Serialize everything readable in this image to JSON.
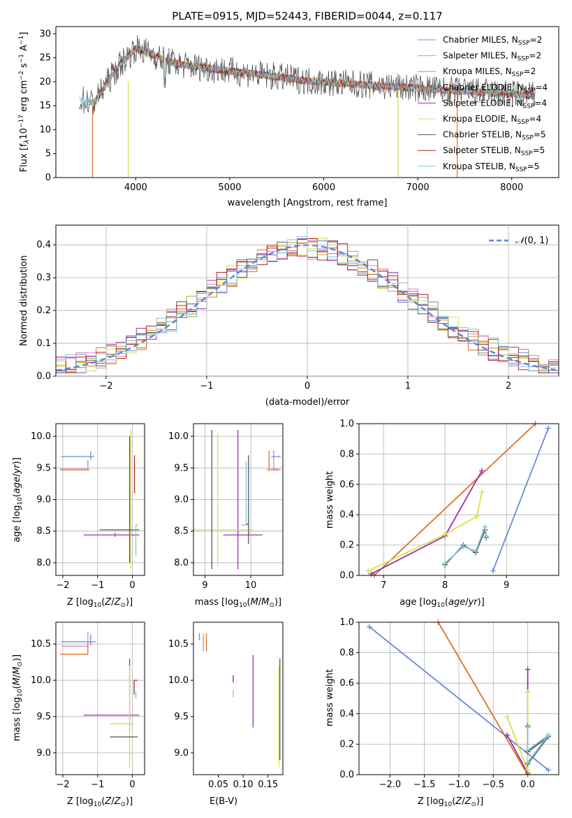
{
  "chart_data": [
    {
      "id": "spectrum",
      "type": "line",
      "title": "PLATE=0915, MJD=52443, FIBERID=0044, z=0.117",
      "xlabel": "wavelength [Angstrom, rest frame]",
      "ylabel": "Flux [f_λ 10^-17 erg cm^-2 s^-1 A^-1]",
      "xlim": [
        3150,
        8500
      ],
      "ylim": [
        0,
        31.5
      ],
      "xticks": [
        4000,
        5000,
        6000,
        7000,
        8000
      ],
      "yticks": [
        0,
        5,
        10,
        15,
        20,
        25,
        30
      ],
      "grid": false,
      "legend_position": "top-right",
      "series": [
        {
          "name": "Chabrier MILES, N_SSP=2",
          "color": "#6a8bd8"
        },
        {
          "name": "Salpeter MILES, N_SSP=2",
          "color": "#e07fc0"
        },
        {
          "name": "Kroupa MILES, N_SSP=2",
          "color": "#c8a126"
        },
        {
          "name": "Chabrier ELODIE, N_SSP=4",
          "color": "#e07024"
        },
        {
          "name": "Salpeter ELODIE, N_SSP=4",
          "color": "#9b2fae"
        },
        {
          "name": "Kroupa ELODIE, N_SSP=4",
          "color": "#d8e04a"
        },
        {
          "name": "Chabrier STELIB, N_SSP=5",
          "color": "#555555"
        },
        {
          "name": "Salpeter STELIB, N_SSP=5",
          "color": "#b22222"
        },
        {
          "name": "Kroupa STELIB, N_SSP=5",
          "color": "#7fc8d8"
        }
      ],
      "data_observed": {
        "x": [
          3400,
          3550,
          3700,
          3850,
          4000,
          4150,
          4300,
          4500,
          4700,
          4900,
          5100,
          5300,
          5500,
          5700,
          5900,
          6100,
          6300,
          6500,
          6700,
          6900,
          7100,
          7300,
          7500,
          7700,
          7900,
          8100,
          8250
        ],
        "y": [
          16.5,
          15.5,
          20,
          24,
          27,
          26,
          24.5,
          23.5,
          23,
          22.5,
          22,
          21.5,
          21,
          20.5,
          20,
          19.8,
          19.5,
          19.3,
          19,
          18.8,
          18.5,
          18.2,
          18,
          17.8,
          17.5,
          17.3,
          17
        ]
      }
    },
    {
      "id": "residuals",
      "type": "histogram",
      "xlabel": "(data-model)/error",
      "ylabel": "Normed distribution",
      "xlim": [
        -2.5,
        2.5
      ],
      "ylim": [
        0,
        0.46
      ],
      "xticks": [
        -2,
        -1,
        0,
        1,
        2
      ],
      "yticks": [
        0.0,
        0.1,
        0.2,
        0.3,
        0.4
      ],
      "grid": true,
      "legend_position": "top-right",
      "reference_curve": {
        "name": "N(0,1)",
        "mean": 0,
        "sigma": 1,
        "color": "#5b86d6"
      }
    },
    {
      "id": "age-vs-z",
      "type": "error-bars",
      "xlabel": "Z [log10(Z/Z_sun)]",
      "ylabel": "age [log10(age/yr)]",
      "xlim": [
        -2.2,
        0.35
      ],
      "ylim": [
        7.8,
        10.2
      ],
      "xticks": [
        -2,
        -1,
        0
      ],
      "yticks": [
        8.0,
        8.5,
        9.0,
        9.5,
        10.0
      ],
      "grid": true,
      "points": [
        {
          "series": "Chabrier MILES",
          "x": -1.2,
          "y": 9.68,
          "xerr": [
            0.85,
            0.1
          ],
          "yerr": [
            0.05,
            0.08
          ]
        },
        {
          "series": "Chabrier ELODIE",
          "x": -1.28,
          "y": 9.47,
          "xerr": [
            0.8,
            0.05
          ],
          "yerr": [
            0.0,
            0.15
          ]
        },
        {
          "series": "Salpeter MILES",
          "x": -1.28,
          "y": 9.48,
          "xerr": [
            0.8,
            0.02
          ],
          "yerr": [
            0.0,
            0.1
          ]
        },
        {
          "series": "Salpeter ELODIE",
          "x": -0.5,
          "y": 8.44,
          "xerr": [
            0.9,
            0.7
          ],
          "yerr": [
            0.03,
            0.03
          ]
        },
        {
          "series": "Kroupa ELODIE",
          "x": -0.05,
          "y": 9.0,
          "xerr": [
            0.03,
            0.03
          ],
          "yerr": [
            1.1,
            1.1
          ]
        },
        {
          "series": "Chabrier STELIB",
          "x": -0.1,
          "y": 8.52,
          "xerr": [
            0.85,
            0.3
          ],
          "yerr": [
            0.0,
            0.0
          ]
        },
        {
          "series": "Chabrier STELIB",
          "x": -0.08,
          "y": 9.0,
          "xerr": [
            0.0,
            0.0
          ],
          "yerr": [
            1.0,
            1.0
          ]
        },
        {
          "series": "Kroupa STELIB",
          "x": 0.1,
          "y": 8.6,
          "xerr": [
            0.0,
            0.05
          ],
          "yerr": [
            0.5,
            0.0
          ]
        },
        {
          "series": "Salpeter STELIB",
          "x": 0.06,
          "y": 9.4,
          "xerr": [
            0.0,
            0.0
          ],
          "yerr": [
            0.3,
            0.3
          ]
        }
      ]
    },
    {
      "id": "age-vs-mass",
      "type": "error-bars",
      "xlabel": "mass [log10(M/M_sun)]",
      "ylabel": "",
      "xlim": [
        8.75,
        10.7
      ],
      "ylim": [
        7.8,
        10.2
      ],
      "xticks": [
        9,
        10
      ],
      "yticks": [
        8.0,
        8.5,
        9.0,
        9.5,
        10.0
      ],
      "grid": true,
      "points": [
        {
          "series": "Chabrier MILES",
          "x": 10.5,
          "y": 9.68,
          "xerr": [
            0.05,
            0.15
          ],
          "yerr": [
            0.05,
            0.1
          ]
        },
        {
          "series": "Chabrier ELODIE",
          "x": 10.4,
          "y": 9.47,
          "xerr": [
            0.05,
            0.25
          ],
          "yerr": [
            0.0,
            0.3
          ]
        },
        {
          "series": "Salpeter MILES",
          "x": 10.5,
          "y": 9.48,
          "xerr": [
            0.05,
            0.1
          ],
          "yerr": [
            0.0,
            0.3
          ]
        },
        {
          "series": "Salpeter ELODIE",
          "x": 9.85,
          "y": 8.44,
          "xerr": [
            0.45,
            0.4
          ],
          "yerr": [
            0.0,
            0.0
          ]
        },
        {
          "series": "Salpeter ELODIE",
          "x": 9.72,
          "y": 9.0,
          "xerr": [
            0.0,
            0.0
          ],
          "yerr": [
            1.1,
            1.1
          ]
        },
        {
          "series": "Kroupa ELODIE",
          "x": 9.28,
          "y": 9.0,
          "xerr": [
            0.0,
            0.0
          ],
          "yerr": [
            1.05,
            1.05
          ]
        },
        {
          "series": "Kroupa ELODIE",
          "x": 9.15,
          "y": 8.52,
          "xerr": [
            0.45,
            0.9
          ],
          "yerr": [
            0.0,
            0.0
          ]
        },
        {
          "series": "Chabrier STELIB",
          "x": 9.15,
          "y": 9.0,
          "xerr": [
            0.0,
            0.0
          ],
          "yerr": [
            1.1,
            1.1
          ]
        },
        {
          "series": "Kroupa STELIB",
          "x": 9.9,
          "y": 8.6,
          "xerr": [
            0.1,
            0.0
          ],
          "yerr": [
            0.0,
            1.0
          ]
        },
        {
          "series": "Chabrier STELIB",
          "x": 9.95,
          "y": 9.0,
          "xerr": [
            0.0,
            0.0
          ],
          "yerr": [
            0.7,
            0.7
          ]
        },
        {
          "series": "Salpeter STELIB",
          "x": 9.95,
          "y": 8.61,
          "xerr": [
            0.05,
            0.0
          ],
          "yerr": [
            0.0,
            0.0
          ]
        }
      ]
    },
    {
      "id": "mass-weight-vs-age",
      "type": "line",
      "xlabel": "age [log10(age/yr)]",
      "ylabel": "mass weight",
      "xlim": [
        6.6,
        9.85
      ],
      "ylim": [
        0,
        1.0
      ],
      "xticks": [
        7,
        8,
        9
      ],
      "yticks": [
        0.0,
        0.2,
        0.4,
        0.6,
        0.8,
        1.0
      ],
      "grid": true,
      "series": [
        {
          "name": "Chabrier MILES",
          "x": [
            8.78,
            9.68
          ],
          "y": [
            0.03,
            0.97
          ]
        },
        {
          "name": "Chabrier ELODIE",
          "x": [
            6.85,
            9.47
          ],
          "y": [
            0.0,
            1.0
          ]
        },
        {
          "name": "Salpeter ELODIE",
          "x": [
            6.8,
            8.0,
            8.6
          ],
          "y": [
            0.01,
            0.26,
            0.69
          ]
        },
        {
          "name": "Kroupa ELODIE",
          "x": [
            6.75,
            8.0,
            8.52,
            8.6
          ],
          "y": [
            0.03,
            0.27,
            0.39,
            0.55
          ]
        },
        {
          "name": "Chabrier STELIB",
          "x": [
            8.0,
            8.3,
            8.5,
            8.65,
            8.67
          ],
          "y": [
            0.07,
            0.2,
            0.15,
            0.3,
            0.25
          ]
        },
        {
          "name": "Kroupa STELIB",
          "x": [
            8.0,
            8.3,
            8.5,
            8.65,
            8.67
          ],
          "y": [
            0.08,
            0.19,
            0.16,
            0.32,
            0.26
          ]
        }
      ]
    },
    {
      "id": "mass-vs-z",
      "type": "error-bars",
      "xlabel": "Z [log10(Z/Z_sun)]",
      "ylabel": "mass [log10(M/M_sun)]",
      "xlim": [
        -2.2,
        0.35
      ],
      "ylim": [
        8.7,
        10.8
      ],
      "xticks": [
        -2,
        -1,
        0
      ],
      "yticks": [
        9.0,
        9.5,
        10.0,
        10.5
      ],
      "grid": true,
      "points": [
        {
          "series": "Chabrier MILES",
          "x": -1.2,
          "y": 10.53,
          "xerr": [
            0.85,
            0.15
          ],
          "yerr": [
            0.05,
            0.1
          ]
        },
        {
          "series": "Salpeter MILES",
          "x": -1.28,
          "y": 10.47,
          "xerr": [
            0.75,
            0.0
          ],
          "yerr": [
            0.0,
            0.2
          ]
        },
        {
          "series": "Chabrier ELODIE",
          "x": -1.28,
          "y": 10.36,
          "xerr": [
            0.8,
            0.0
          ],
          "yerr": [
            0.0,
            0.15
          ]
        },
        {
          "series": "Salpeter ELODIE",
          "x": -0.5,
          "y": 9.52,
          "xerr": [
            0.9,
            0.7
          ],
          "yerr": [
            0.0,
            0.0
          ]
        },
        {
          "series": "Salpeter ELODIE",
          "x": -0.08,
          "y": 9.8,
          "xerr": [
            0.0,
            0.0
          ],
          "yerr": [
            0.5,
            0.5
          ]
        },
        {
          "series": "Kroupa ELODIE",
          "x": -0.35,
          "y": 9.4,
          "xerr": [
            0.3,
            0.4
          ],
          "yerr": [
            0.0,
            0.0
          ]
        },
        {
          "series": "Kroupa ELODIE",
          "x": -0.08,
          "y": 9.3,
          "xerr": [
            0.0,
            0.0
          ],
          "yerr": [
            0.5,
            0.9
          ]
        },
        {
          "series": "Chabrier STELIB",
          "x": -0.3,
          "y": 9.22,
          "xerr": [
            0.35,
            0.45
          ],
          "yerr": [
            0.0,
            0.0
          ]
        },
        {
          "series": "Salpeter STELIB",
          "x": 0.05,
          "y": 10.0,
          "xerr": [
            0.0,
            0.1
          ],
          "yerr": [
            0.1,
            0.0
          ]
        },
        {
          "series": "Kroupa STELIB",
          "x": 0.1,
          "y": 9.85,
          "xerr": [
            0.0,
            0.0
          ],
          "yerr": [
            0.1,
            0.0
          ]
        },
        {
          "series": "Chabrier STELIB",
          "x": 0.05,
          "y": 9.85,
          "xerr": [
            0.0,
            0.0
          ],
          "yerr": [
            0.05,
            0.05
          ]
        }
      ]
    },
    {
      "id": "mass-vs-ebv",
      "type": "error-bars",
      "xlabel": "E(B-V)",
      "ylabel": "",
      "xlim": [
        0.0,
        0.18
      ],
      "ylim": [
        8.7,
        10.8
      ],
      "xticks": [
        0.05,
        0.1,
        0.15
      ],
      "yticks": [
        9.0,
        9.5,
        10.0,
        10.5
      ],
      "grid": false,
      "points": [
        {
          "series": "Chabrier MILES",
          "x": 0.012,
          "y": 10.6,
          "yerr": [
            0.05,
            0.05
          ]
        },
        {
          "series": "Salpeter MILES",
          "x": 0.02,
          "y": 10.55,
          "yerr": [
            0.15,
            0.1
          ]
        },
        {
          "series": "Chabrier ELODIE",
          "x": 0.026,
          "y": 10.5,
          "yerr": [
            0.1,
            0.15
          ]
        },
        {
          "series": "Salpeter STELIB",
          "x": 0.08,
          "y": 10.02,
          "yerr": [
            0.05,
            0.05
          ]
        },
        {
          "series": "Kroupa STELIB",
          "x": 0.08,
          "y": 9.82,
          "yerr": [
            0.05,
            0.05
          ]
        },
        {
          "series": "Salpeter ELODIE",
          "x": 0.12,
          "y": 9.85,
          "yerr": [
            0.5,
            0.5
          ]
        },
        {
          "series": "Kroupa ELODIE",
          "x": 0.172,
          "y": 9.5,
          "yerr": [
            0.7,
            0.7
          ]
        },
        {
          "series": "Chabrier STELIB",
          "x": 0.174,
          "y": 9.6,
          "yerr": [
            0.7,
            0.7
          ]
        }
      ]
    },
    {
      "id": "mass-weight-vs-z",
      "type": "line",
      "xlabel": "Z [log10(Z/Z_sun)]",
      "ylabel": "mass weight",
      "xlim": [
        -2.45,
        0.45
      ],
      "ylim": [
        0,
        1.0
      ],
      "xticks": [
        -2.0,
        -1.5,
        -1.0,
        -0.5,
        0.0
      ],
      "yticks": [
        0.0,
        0.2,
        0.4,
        0.6,
        0.8,
        1.0
      ],
      "grid": true,
      "series": [
        {
          "name": "Chabrier MILES",
          "x": [
            -2.3,
            0.3
          ],
          "y": [
            0.97,
            0.03
          ]
        },
        {
          "name": "Chabrier ELODIE",
          "x": [
            -1.3,
            0.0
          ],
          "y": [
            1.0,
            0.0
          ]
        },
        {
          "name": "Salpeter ELODIE",
          "x": [
            -0.3,
            0.0,
            0.0
          ],
          "y": [
            0.26,
            0.01,
            0.69
          ]
        },
        {
          "name": "Kroupa ELODIE",
          "x": [
            -0.3,
            0.0,
            0.0
          ],
          "y": [
            0.38,
            0.03,
            0.54
          ]
        },
        {
          "name": "Chabrier STELIB",
          "x": [
            0.0,
            0.0,
            0.3,
            0.0
          ],
          "y": [
            0.32,
            0.15,
            0.25,
            0.07
          ]
        },
        {
          "name": "Kroupa STELIB",
          "x": [
            0.0,
            0.0,
            0.3,
            0.0
          ],
          "y": [
            0.31,
            0.16,
            0.26,
            0.08
          ]
        }
      ]
    }
  ]
}
